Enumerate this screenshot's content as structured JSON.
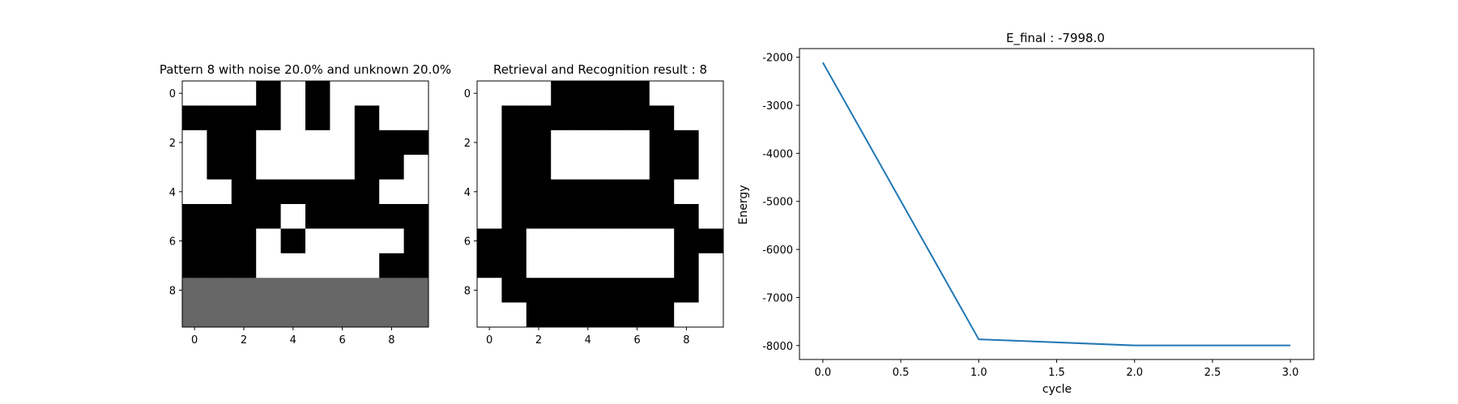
{
  "chart_data": [
    {
      "type": "heatmap",
      "title": "Pattern 8 with noise 20.0% and unknown 20.0%",
      "xticks": [
        "0",
        "2",
        "4",
        "6",
        "8"
      ],
      "yticks": [
        "0",
        "2",
        "4",
        "6",
        "8"
      ],
      "colors": {
        "1": "#000000",
        "0": "#ffffff",
        "-1": "#666666"
      },
      "grid": [
        [
          0,
          0,
          0,
          1,
          0,
          1,
          0,
          0,
          0,
          0
        ],
        [
          1,
          1,
          1,
          1,
          0,
          1,
          0,
          1,
          0,
          0
        ],
        [
          0,
          1,
          1,
          0,
          0,
          0,
          0,
          1,
          1,
          1
        ],
        [
          0,
          1,
          1,
          0,
          0,
          0,
          0,
          1,
          1,
          0
        ],
        [
          0,
          0,
          1,
          1,
          1,
          1,
          1,
          1,
          0,
          0
        ],
        [
          1,
          1,
          1,
          1,
          0,
          1,
          1,
          1,
          1,
          1
        ],
        [
          1,
          1,
          1,
          0,
          1,
          0,
          0,
          0,
          0,
          1
        ],
        [
          1,
          1,
          1,
          0,
          0,
          0,
          0,
          0,
          1,
          1
        ],
        [
          -1,
          -1,
          -1,
          -1,
          -1,
          -1,
          -1,
          -1,
          -1,
          -1
        ],
        [
          -1,
          -1,
          -1,
          -1,
          -1,
          -1,
          -1,
          -1,
          -1,
          -1
        ]
      ]
    },
    {
      "type": "heatmap",
      "title": "Retrieval and Recognition result : 8",
      "xticks": [
        "0",
        "2",
        "4",
        "6",
        "8"
      ],
      "yticks": [
        "0",
        "2",
        "4",
        "6",
        "8"
      ],
      "colors": {
        "1": "#000000",
        "0": "#ffffff"
      },
      "grid": [
        [
          0,
          0,
          0,
          1,
          1,
          1,
          1,
          0,
          0,
          0
        ],
        [
          0,
          1,
          1,
          1,
          1,
          1,
          1,
          1,
          0,
          0
        ],
        [
          0,
          1,
          1,
          0,
          0,
          0,
          0,
          1,
          1,
          0
        ],
        [
          0,
          1,
          1,
          0,
          0,
          0,
          0,
          1,
          1,
          0
        ],
        [
          0,
          1,
          1,
          1,
          1,
          1,
          1,
          1,
          0,
          0
        ],
        [
          0,
          1,
          1,
          1,
          1,
          1,
          1,
          1,
          1,
          0
        ],
        [
          1,
          1,
          0,
          0,
          0,
          0,
          0,
          0,
          1,
          1
        ],
        [
          1,
          1,
          0,
          0,
          0,
          0,
          0,
          0,
          1,
          0
        ],
        [
          0,
          1,
          1,
          1,
          1,
          1,
          1,
          1,
          1,
          0
        ],
        [
          0,
          0,
          1,
          1,
          1,
          1,
          1,
          1,
          0,
          0
        ]
      ]
    },
    {
      "type": "line",
      "title": "E_final : -7998.0",
      "xlabel": "cycle",
      "ylabel": "Energy",
      "x": [
        0,
        1,
        2,
        3
      ],
      "series": [
        {
          "values": [
            -2110,
            -7870,
            -7998,
            -7998
          ],
          "color": "#1f77b4"
        }
      ],
      "xlim": [
        -0.15,
        3.15
      ],
      "ylim": [
        -8290,
        -1820
      ],
      "xticks": [
        "0.0",
        "0.5",
        "1.0",
        "1.5",
        "2.0",
        "2.5",
        "3.0"
      ],
      "yticks": [
        "-2000",
        "-3000",
        "-4000",
        "-5000",
        "-6000",
        "-7000",
        "-8000"
      ],
      "grid": false
    }
  ]
}
